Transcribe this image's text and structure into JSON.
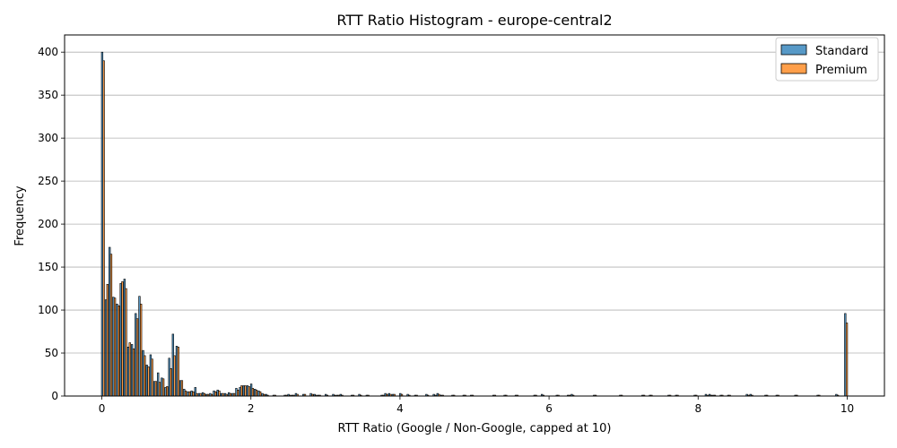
{
  "chart_data": {
    "type": "bar",
    "title": "RTT Ratio Histogram - europe-central2",
    "xlabel": "RTT Ratio (Google / Non-Google, capped at 10)",
    "ylabel": "Frequency",
    "xlim": [
      -0.5,
      10.5
    ],
    "ylim": [
      0,
      420
    ],
    "xticks": [
      0,
      2,
      4,
      6,
      8,
      10
    ],
    "yticks": [
      0,
      50,
      100,
      150,
      200,
      250,
      300,
      350,
      400
    ],
    "grid": "horizontal",
    "legend_position": "top-right",
    "x": [
      0.0,
      0.05,
      0.1,
      0.15,
      0.2,
      0.25,
      0.3,
      0.35,
      0.4,
      0.45,
      0.5,
      0.55,
      0.6,
      0.65,
      0.7,
      0.75,
      0.8,
      0.85,
      0.9,
      0.95,
      1.0,
      1.05,
      1.1,
      1.15,
      1.2,
      1.25,
      1.3,
      1.35,
      1.4,
      1.45,
      1.5,
      1.55,
      1.6,
      1.65,
      1.7,
      1.75,
      1.8,
      1.85,
      1.9,
      1.95,
      2.0,
      2.05,
      2.1,
      2.15,
      2.2,
      2.3,
      2.45,
      2.5,
      2.55,
      2.6,
      2.7,
      2.8,
      2.85,
      2.9,
      3.0,
      3.1,
      3.15,
      3.2,
      3.35,
      3.45,
      3.55,
      3.75,
      3.8,
      3.85,
      3.9,
      4.0,
      4.1,
      4.2,
      4.35,
      4.45,
      4.5,
      4.55,
      4.7,
      4.85,
      4.95,
      5.25,
      5.4,
      5.55,
      5.8,
      5.9,
      6.1,
      6.25,
      6.3,
      6.6,
      6.95,
      7.25,
      7.35,
      7.6,
      7.7,
      7.95,
      8.1,
      8.15,
      8.2,
      8.3,
      8.4,
      8.65,
      8.7,
      8.9,
      9.05,
      9.3,
      9.6,
      9.85,
      9.97
    ],
    "series": [
      {
        "name": "Standard",
        "color": "#1f77b4",
        "values": [
          400,
          112,
          173,
          115,
          107,
          131,
          136,
          57,
          60,
          96,
          116,
          53,
          36,
          48,
          17,
          27,
          21,
          10,
          44,
          72,
          58,
          18,
          8,
          5,
          6,
          10,
          3,
          4,
          2,
          3,
          6,
          7,
          3,
          3,
          4,
          3,
          9,
          10,
          12,
          12,
          14,
          8,
          6,
          3,
          2,
          1,
          1,
          2,
          1,
          3,
          2,
          3,
          2,
          1,
          2,
          2,
          1,
          2,
          1,
          2,
          1,
          1,
          3,
          3,
          2,
          3,
          2,
          1,
          2,
          2,
          3,
          1,
          1,
          1,
          1,
          1,
          1,
          1,
          1,
          2,
          1,
          1,
          2,
          1,
          1,
          1,
          1,
          1,
          1,
          1,
          2,
          2,
          1,
          1,
          1,
          2,
          2,
          1,
          1,
          1,
          1,
          2,
          96
        ]
      },
      {
        "name": "Premium",
        "color": "#ff7f0e",
        "values": [
          390,
          130,
          165,
          114,
          105,
          133,
          125,
          62,
          55,
          90,
          107,
          47,
          34,
          43,
          17,
          16,
          20,
          11,
          32,
          47,
          57,
          18,
          6,
          5,
          5,
          3,
          3,
          3,
          2,
          2,
          5,
          6,
          3,
          2,
          3,
          3,
          7,
          12,
          12,
          11,
          9,
          7,
          5,
          2,
          1,
          1,
          1,
          1,
          1,
          2,
          2,
          2,
          1,
          1,
          1,
          1,
          1,
          1,
          1,
          1,
          1,
          1,
          2,
          2,
          2,
          2,
          1,
          1,
          1,
          1,
          2,
          1,
          1,
          1,
          1,
          1,
          1,
          1,
          1,
          1,
          1,
          1,
          1,
          1,
          1,
          1,
          1,
          1,
          1,
          1,
          1,
          1,
          1,
          1,
          1,
          1,
          1,
          1,
          1,
          1,
          1,
          1,
          85
        ]
      }
    ]
  }
}
